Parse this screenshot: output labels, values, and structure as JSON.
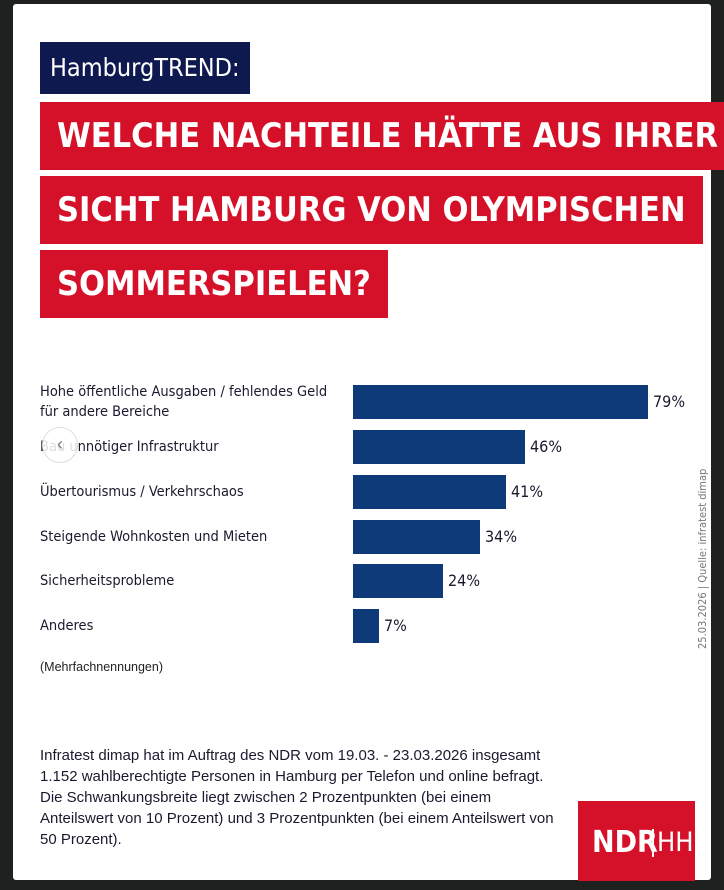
{
  "header": {
    "brand": "HamburgTREND:",
    "headline_lines": [
      "WELCHE NACHTEILE HÄTTE AUS IHRER",
      "SICHT HAMBURG VON OLYMPISCHEN",
      "SOMMERSPIELEN?"
    ]
  },
  "chart_data": {
    "type": "bar",
    "orientation": "horizontal",
    "categories": [
      "Hohe öffentliche Ausgaben / fehlendes Geld für andere Bereiche",
      "Bau unnötiger Infrastruktur",
      "Übertourismus / Verkehrschaos",
      "Steigende Wohnkosten und Mieten",
      "Sicherheitsprobleme",
      "Anderes"
    ],
    "category_lines": [
      [
        "Hohe öffentliche Ausgaben / fehlendes Geld",
        "für andere Bereiche"
      ],
      [
        "Bau unnötiger Infrastruktur"
      ],
      [
        "Übertourismus / Verkehrschaos"
      ],
      [
        "Steigende Wohnkosten und Mieten"
      ],
      [
        "Sicherheitsprobleme"
      ],
      [
        "Anderes"
      ]
    ],
    "values": [
      79,
      46,
      41,
      34,
      24,
      7
    ],
    "value_labels": [
      "79%",
      "46%",
      "41%",
      "34%",
      "24%",
      "7%"
    ],
    "xlim": [
      0,
      100
    ],
    "grid": false,
    "bar_color": "#0e3a7a"
  },
  "note": "(Mehrfachnennungen)",
  "source": "25.03.2026 | Quelle: infratest dimap",
  "footer": {
    "text": "Infratest dimap hat im Auftrag des NDR vom 19.03. - 23.03.2026 insgesamt 1.152 wahlberechtigte Personen in Hamburg per Telefon und online befragt. Die Schwankungsbreite liegt zwischen 2 Prozentpunkten (bei einem Anteilswert von 10 Prozent) und 3 Prozentpunkten (bei einem Anteilswert von 50 Prozent)."
  },
  "logo": {
    "text": "NDR",
    "region": "HH",
    "color": "#d5112a"
  },
  "colors": {
    "brand_navy": "#0e1a4f",
    "accent_red": "#d5112a"
  },
  "nav": {
    "prev_icon": "chevron-left-icon",
    "prev_glyph": "‹"
  }
}
